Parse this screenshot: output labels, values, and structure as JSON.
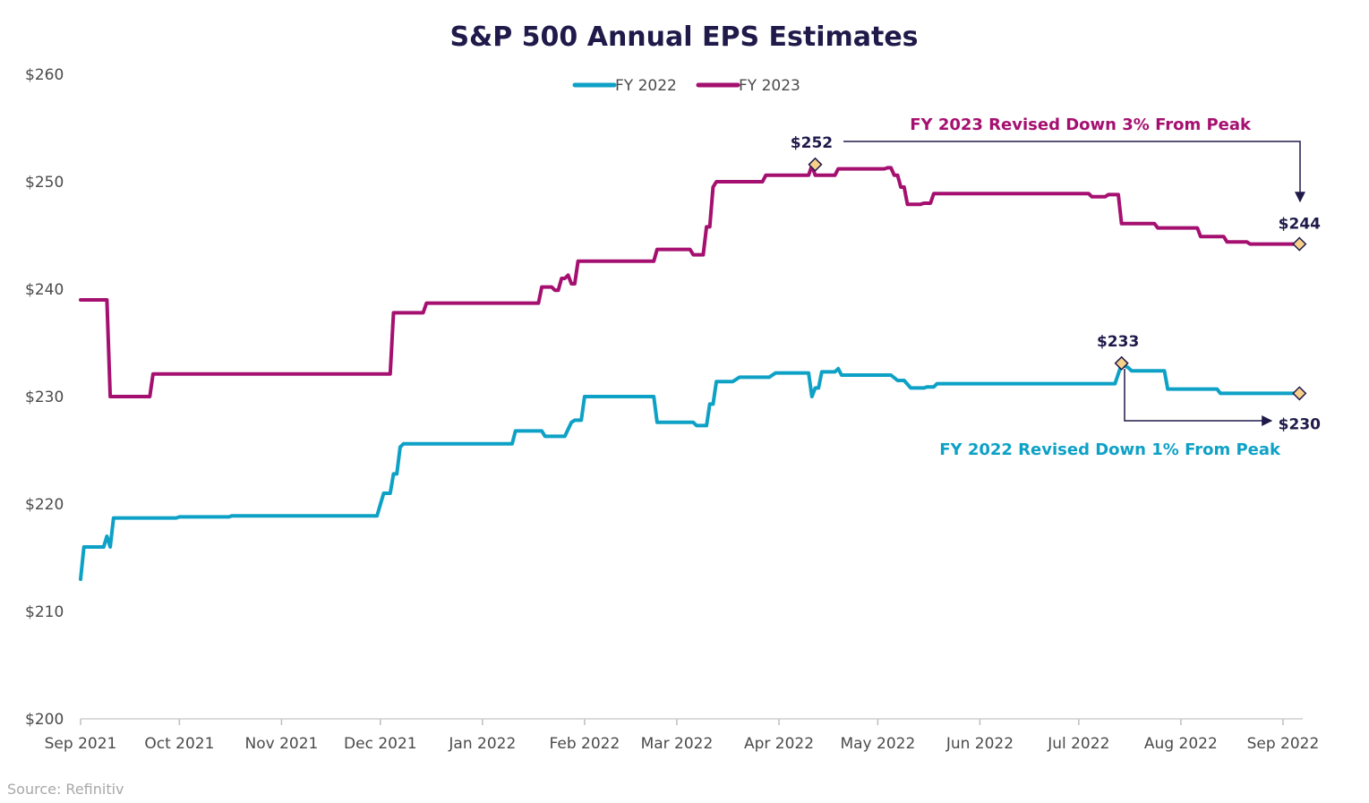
{
  "chart_data": {
    "type": "line",
    "title": "S&P 500 Annual EPS Estimates",
    "xlabel": "",
    "ylabel": "",
    "ylim": [
      200,
      260
    ],
    "y_ticks": [
      200,
      210,
      220,
      230,
      240,
      250,
      260
    ],
    "y_tick_labels": [
      "$200",
      "$210",
      "$220",
      "$230",
      "$240",
      "$250",
      "$260"
    ],
    "x_ticks": [
      "2021-09-01",
      "2021-10-01",
      "2021-11-01",
      "2021-12-01",
      "2022-01-01",
      "2022-02-01",
      "2022-03-01",
      "2022-04-01",
      "2022-05-01",
      "2022-06-01",
      "2022-07-01",
      "2022-08-01",
      "2022-09-01"
    ],
    "x_tick_labels": [
      "Sep 2021",
      "Oct 2021",
      "Nov 2021",
      "Dec 2021",
      "Jan 2022",
      "Feb 2022",
      "Mar 2022",
      "Apr 2022",
      "May 2022",
      "Jun 2022",
      "Jul 2022",
      "Aug 2022",
      "Sep 2022"
    ],
    "xlim": [
      "2021-09-01",
      "2022-09-07"
    ],
    "legend_position": "top-center",
    "grid": false,
    "series": [
      {
        "name": "FY 2022",
        "color": "#0ea1c6",
        "points": [
          [
            "2021-09-01",
            213.0
          ],
          [
            "2021-09-02",
            216.0
          ],
          [
            "2021-09-08",
            216.0
          ],
          [
            "2021-09-09",
            217.0
          ],
          [
            "2021-09-10",
            216.0
          ],
          [
            "2021-09-11",
            218.7
          ],
          [
            "2021-09-30",
            218.7
          ],
          [
            "2021-10-01",
            218.8
          ],
          [
            "2021-10-16",
            218.8
          ],
          [
            "2021-10-17",
            218.9
          ],
          [
            "2021-11-30",
            218.9
          ],
          [
            "2021-12-02",
            221.0
          ],
          [
            "2021-12-04",
            221.0
          ],
          [
            "2021-12-05",
            222.8
          ],
          [
            "2021-12-06",
            222.8
          ],
          [
            "2021-12-07",
            225.3
          ],
          [
            "2021-12-08",
            225.6
          ],
          [
            "2022-01-10",
            225.6
          ],
          [
            "2022-01-11",
            226.8
          ],
          [
            "2022-01-19",
            226.8
          ],
          [
            "2022-01-20",
            226.3
          ],
          [
            "2022-01-26",
            226.3
          ],
          [
            "2022-01-28",
            227.6
          ],
          [
            "2022-01-29",
            227.8
          ],
          [
            "2022-01-31",
            227.8
          ],
          [
            "2022-02-01",
            230.0
          ],
          [
            "2022-02-22",
            230.0
          ],
          [
            "2022-02-23",
            227.6
          ],
          [
            "2022-03-06",
            227.6
          ],
          [
            "2022-03-07",
            227.3
          ],
          [
            "2022-03-10",
            227.3
          ],
          [
            "2022-03-11",
            229.3
          ],
          [
            "2022-03-12",
            229.3
          ],
          [
            "2022-03-13",
            231.4
          ],
          [
            "2022-03-18",
            231.4
          ],
          [
            "2022-03-20",
            231.8
          ],
          [
            "2022-03-29",
            231.8
          ],
          [
            "2022-03-31",
            232.2
          ],
          [
            "2022-04-10",
            232.2
          ],
          [
            "2022-04-11",
            230.0
          ],
          [
            "2022-04-12",
            230.8
          ],
          [
            "2022-04-13",
            230.8
          ],
          [
            "2022-04-14",
            232.3
          ],
          [
            "2022-04-18",
            232.3
          ],
          [
            "2022-04-19",
            232.6
          ],
          [
            "2022-04-20",
            232.0
          ],
          [
            "2022-05-05",
            232.0
          ],
          [
            "2022-05-07",
            231.5
          ],
          [
            "2022-05-09",
            231.5
          ],
          [
            "2022-05-11",
            230.8
          ],
          [
            "2022-05-15",
            230.8
          ],
          [
            "2022-05-16",
            230.9
          ],
          [
            "2022-05-18",
            230.9
          ],
          [
            "2022-05-19",
            231.2
          ],
          [
            "2022-07-12",
            231.2
          ],
          [
            "2022-07-14",
            233.0
          ],
          [
            "2022-07-16",
            232.7
          ],
          [
            "2022-07-17",
            232.4
          ],
          [
            "2022-07-27",
            232.4
          ],
          [
            "2022-07-28",
            230.7
          ],
          [
            "2022-08-12",
            230.7
          ],
          [
            "2022-08-13",
            230.3
          ],
          [
            "2022-09-06",
            230.3
          ]
        ]
      },
      {
        "name": "FY 2023",
        "color": "#a51070",
        "points": [
          [
            "2021-09-01",
            239.0
          ],
          [
            "2021-09-09",
            239.0
          ],
          [
            "2021-09-10",
            230.0
          ],
          [
            "2021-09-22",
            230.0
          ],
          [
            "2021-09-23",
            232.1
          ],
          [
            "2021-12-04",
            232.1
          ],
          [
            "2021-12-05",
            237.8
          ],
          [
            "2021-12-14",
            237.8
          ],
          [
            "2021-12-15",
            238.7
          ],
          [
            "2022-01-18",
            238.7
          ],
          [
            "2022-01-19",
            240.2
          ],
          [
            "2022-01-22",
            240.2
          ],
          [
            "2022-01-23",
            239.9
          ],
          [
            "2022-01-24",
            239.9
          ],
          [
            "2022-01-25",
            241.0
          ],
          [
            "2022-01-26",
            241.0
          ],
          [
            "2022-01-27",
            241.3
          ],
          [
            "2022-01-28",
            240.5
          ],
          [
            "2022-01-29",
            240.5
          ],
          [
            "2022-01-30",
            242.6
          ],
          [
            "2022-02-22",
            242.6
          ],
          [
            "2022-02-23",
            243.7
          ],
          [
            "2022-03-05",
            243.7
          ],
          [
            "2022-03-06",
            243.2
          ],
          [
            "2022-03-09",
            243.2
          ],
          [
            "2022-03-10",
            245.8
          ],
          [
            "2022-03-11",
            245.8
          ],
          [
            "2022-03-12",
            249.5
          ],
          [
            "2022-03-13",
            250.0
          ],
          [
            "2022-03-27",
            250.0
          ],
          [
            "2022-03-28",
            250.6
          ],
          [
            "2022-04-10",
            250.6
          ],
          [
            "2022-04-11",
            251.5
          ],
          [
            "2022-04-12",
            250.6
          ],
          [
            "2022-04-18",
            250.6
          ],
          [
            "2022-04-19",
            251.2
          ],
          [
            "2022-05-03",
            251.2
          ],
          [
            "2022-05-04",
            251.3
          ],
          [
            "2022-05-05",
            251.3
          ],
          [
            "2022-05-06",
            250.6
          ],
          [
            "2022-05-07",
            250.6
          ],
          [
            "2022-05-08",
            249.5
          ],
          [
            "2022-05-09",
            249.5
          ],
          [
            "2022-05-10",
            247.9
          ],
          [
            "2022-05-14",
            247.9
          ],
          [
            "2022-05-15",
            248.0
          ],
          [
            "2022-05-17",
            248.0
          ],
          [
            "2022-05-18",
            248.9
          ],
          [
            "2022-07-04",
            248.9
          ],
          [
            "2022-07-05",
            248.6
          ],
          [
            "2022-07-09",
            248.6
          ],
          [
            "2022-07-10",
            248.8
          ],
          [
            "2022-07-13",
            248.8
          ],
          [
            "2022-07-14",
            246.1
          ],
          [
            "2022-07-24",
            246.1
          ],
          [
            "2022-07-25",
            245.7
          ],
          [
            "2022-08-06",
            245.7
          ],
          [
            "2022-08-07",
            244.9
          ],
          [
            "2022-08-14",
            244.9
          ],
          [
            "2022-08-15",
            244.4
          ],
          [
            "2022-08-21",
            244.4
          ],
          [
            "2022-08-22",
            244.2
          ],
          [
            "2022-09-06",
            244.2
          ]
        ]
      }
    ],
    "markers": [
      {
        "series": "FY 2023",
        "date": "2022-04-12",
        "value": 251.6,
        "label": "$252",
        "label_pos": "above-left"
      },
      {
        "series": "FY 2023",
        "date": "2022-09-06",
        "value": 244.2,
        "label": "$244",
        "label_pos": "above"
      },
      {
        "series": "FY 2022",
        "date": "2022-07-14",
        "value": 233.1,
        "label": "$233",
        "label_pos": "above-left"
      },
      {
        "series": "FY 2022",
        "date": "2022-09-06",
        "value": 230.3,
        "label": "$230",
        "label_pos": "below"
      }
    ],
    "annotations": [
      {
        "text": "FY 2023 Revised Down 3% From Peak",
        "color": "#a51070"
      },
      {
        "text": "FY 2022 Revised Down 1% From Peak",
        "color": "#0ea1c6"
      }
    ],
    "source": "Source: Refinitiv",
    "marker_fill": "#f7d08a",
    "marker_stroke": "#1f1a4a",
    "arrow_color": "#1f1a4a"
  }
}
